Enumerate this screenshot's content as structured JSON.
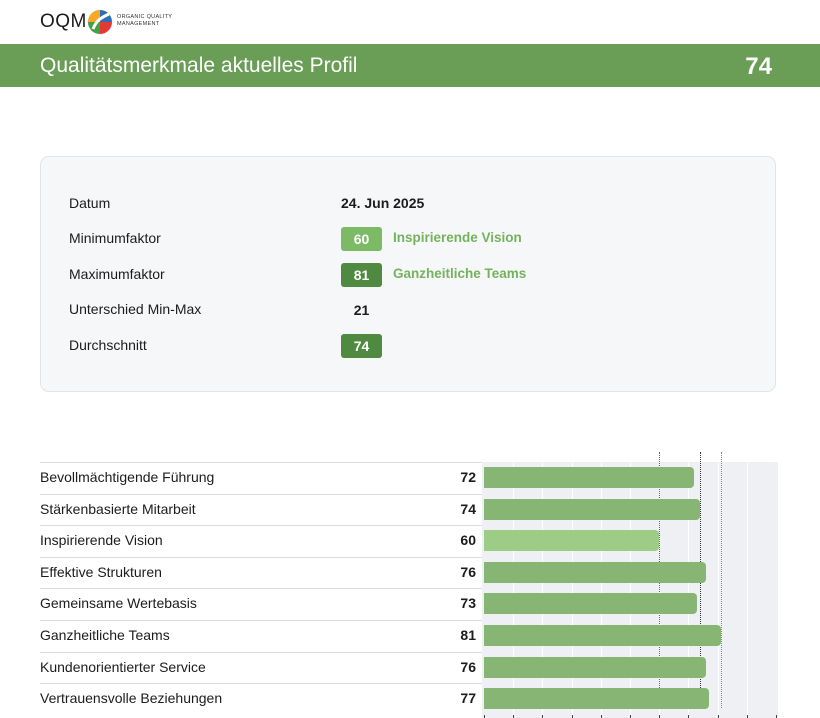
{
  "brand": {
    "name": "OQM",
    "tagline": "ORGANIC QUALITY MANAGEMENT"
  },
  "header": {
    "title": "Qualitätsmerkmale aktuelles Profil",
    "score": "74",
    "color": "#6a9e57"
  },
  "summary": {
    "datum_label": "Datum",
    "datum_value": "24. Jun 2025",
    "min_label": "Minimumfaktor",
    "min_value": "60",
    "min_name": "Inspirierende Vision",
    "max_label": "Maximumfaktor",
    "max_value": "81",
    "max_name": "Ganzheitliche Teams",
    "diff_label": "Unterschied Min-Max",
    "diff_value": "21",
    "avg_label": "Durchschnitt",
    "avg_value": "74"
  },
  "chart_data": {
    "type": "bar",
    "orientation": "horizontal",
    "categories": [
      "Bevollmächtigende Führung",
      "Stärkenbasierte Mitarbeit",
      "Inspirierende Vision",
      "Effektive Strukturen",
      "Gemeinsame Wertebasis",
      "Ganzheitliche Teams",
      "Kundenorientierter Service",
      "Vertrauensvolle Beziehungen"
    ],
    "values": [
      72,
      74,
      60,
      76,
      73,
      81,
      76,
      77
    ],
    "xlim": [
      0,
      100
    ],
    "markers": {
      "min": 60,
      "avg": 74,
      "max": 81
    },
    "bar_color": "#87b574",
    "min_bar_color": "#9ccc85"
  }
}
